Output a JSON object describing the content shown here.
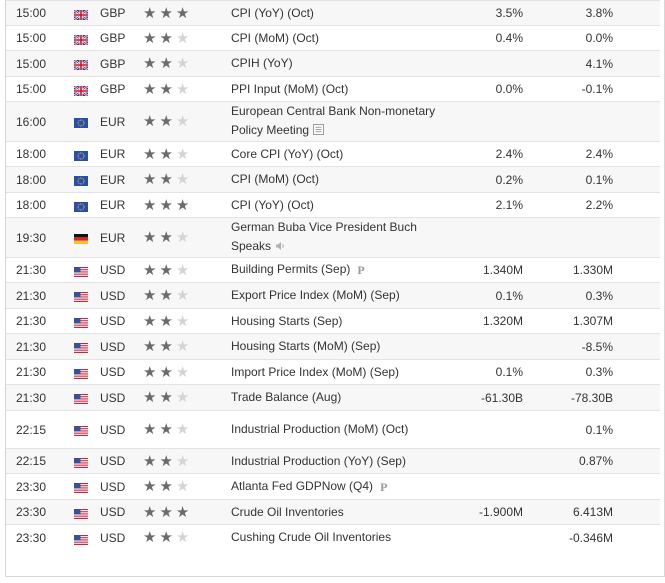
{
  "colors": {
    "row_odd": "#f7f7f7",
    "row_even": "#ffffff",
    "border": "#e3e3e3",
    "star_on": "#6b6b6b",
    "star_off": "#d4d4d4"
  },
  "rows": [
    {
      "time": "15:00",
      "flag": "uk-flag-icon",
      "currency": "GBP",
      "importance": 3,
      "event": "CPI (YoY) (Oct)",
      "actual": "3.5%",
      "previous": "3.8%"
    },
    {
      "time": "15:00",
      "flag": "uk-flag-icon",
      "currency": "GBP",
      "importance": 2,
      "event": "CPI (MoM) (Oct)",
      "actual": "0.4%",
      "previous": "0.0%"
    },
    {
      "time": "15:00",
      "flag": "uk-flag-icon",
      "currency": "GBP",
      "importance": 2,
      "event": "CPIH (YoY)",
      "actual": "",
      "previous": "4.1%"
    },
    {
      "time": "15:00",
      "flag": "uk-flag-icon",
      "currency": "GBP",
      "importance": 2,
      "event": "PPI Input (MoM) (Oct)",
      "actual": "0.0%",
      "previous": "-0.1%"
    },
    {
      "time": "16:00",
      "flag": "eu-flag-icon",
      "currency": "EUR",
      "importance": 2,
      "event": "European Central Bank Non-monetary Policy Meeting",
      "icon": "document-icon",
      "actual": "",
      "previous": ""
    },
    {
      "time": "18:00",
      "flag": "eu-flag-icon",
      "currency": "EUR",
      "importance": 2,
      "event": "Core CPI (YoY) (Oct)",
      "actual": "2.4%",
      "previous": "2.4%"
    },
    {
      "time": "18:00",
      "flag": "eu-flag-icon",
      "currency": "EUR",
      "importance": 2,
      "event": "CPI (MoM) (Oct)",
      "actual": "0.2%",
      "previous": "0.1%"
    },
    {
      "time": "18:00",
      "flag": "eu-flag-icon",
      "currency": "EUR",
      "importance": 3,
      "event": "CPI (YoY) (Oct)",
      "actual": "2.1%",
      "previous": "2.2%"
    },
    {
      "time": "19:30",
      "flag": "de-flag-icon",
      "currency": "EUR",
      "importance": 2,
      "event": "German Buba Vice President Buch Speaks",
      "icon": "speaker-icon",
      "actual": "",
      "previous": ""
    },
    {
      "time": "21:30",
      "flag": "us-flag-icon",
      "currency": "USD",
      "importance": 2,
      "event": "Building Permits (Sep)",
      "icon": "preliminary-icon",
      "actual": "1.340M",
      "previous": "1.330M"
    },
    {
      "time": "21:30",
      "flag": "us-flag-icon",
      "currency": "USD",
      "importance": 2,
      "event": "Export Price Index (MoM) (Sep)",
      "actual": "0.1%",
      "previous": "0.3%"
    },
    {
      "time": "21:30",
      "flag": "us-flag-icon",
      "currency": "USD",
      "importance": 2,
      "event": "Housing Starts (Sep)",
      "actual": "1.320M",
      "previous": "1.307M"
    },
    {
      "time": "21:30",
      "flag": "us-flag-icon",
      "currency": "USD",
      "importance": 2,
      "event": "Housing Starts (MoM) (Sep)",
      "actual": "",
      "previous": "-8.5%"
    },
    {
      "time": "21:30",
      "flag": "us-flag-icon",
      "currency": "USD",
      "importance": 2,
      "event": "Import Price Index (MoM) (Sep)",
      "actual": "0.1%",
      "previous": "0.3%"
    },
    {
      "time": "21:30",
      "flag": "us-flag-icon",
      "currency": "USD",
      "importance": 2,
      "event": "Trade Balance (Aug)",
      "actual": "-61.30B",
      "previous": "-78.30B"
    },
    {
      "time": "22:15",
      "flag": "us-flag-icon",
      "currency": "USD",
      "importance": 2,
      "event": "Industrial Production (MoM) (Oct)",
      "actual": "",
      "previous": "0.1%"
    },
    {
      "time": "22:15",
      "flag": "us-flag-icon",
      "currency": "USD",
      "importance": 2,
      "event": "Industrial Production (YoY) (Sep)",
      "actual": "",
      "previous": "0.87%"
    },
    {
      "time": "23:30",
      "flag": "us-flag-icon",
      "currency": "USD",
      "importance": 2,
      "event": "Atlanta Fed GDPNow (Q4)",
      "icon": "preliminary-icon",
      "actual": "",
      "previous": ""
    },
    {
      "time": "23:30",
      "flag": "us-flag-icon",
      "currency": "USD",
      "importance": 3,
      "event": "Crude Oil Inventories",
      "actual": "-1.900M",
      "previous": "6.413M"
    },
    {
      "time": "23:30",
      "flag": "us-flag-icon",
      "currency": "USD",
      "importance": 2,
      "event": "Cushing Crude Oil Inventories",
      "actual": "",
      "previous": "-0.346M"
    }
  ]
}
